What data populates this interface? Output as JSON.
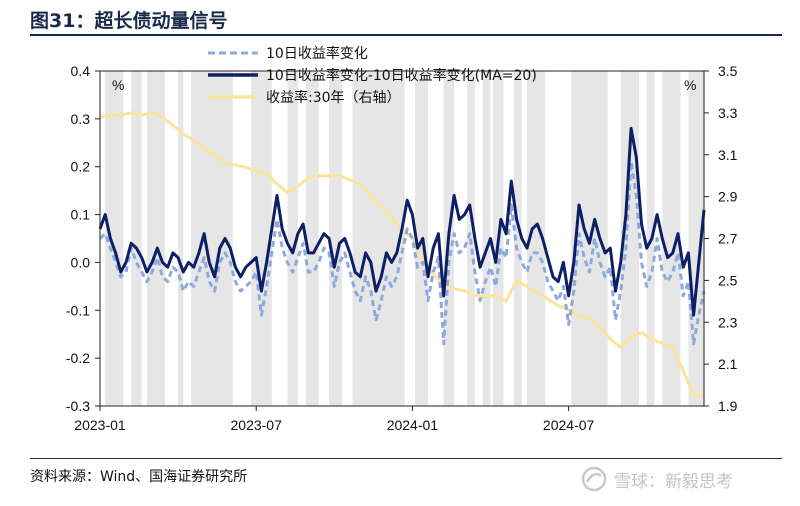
{
  "figure_title": "图31：超长债动量信号",
  "source_note": "资料来源：Wind、国海证券研究所",
  "watermark": "雪球：新毅思考",
  "colors": {
    "dash": "#8fa9dc",
    "solid": "#0d1f66",
    "yellow": "#fbe59c",
    "shade": "#e6e6e6",
    "title": "#1a2a4a"
  },
  "chart_data": {
    "type": "line",
    "title": "超长债动量信号",
    "left_axis_unit": "%",
    "right_axis_unit": "%",
    "ylim_left": [
      -0.3,
      0.4
    ],
    "ylim_right": [
      1.9,
      3.5
    ],
    "left_ticks": [
      "0.4",
      "0.3",
      "0.2",
      "0.1",
      "0.0",
      "-0.1",
      "-0.2",
      "-0.3"
    ],
    "right_ticks": [
      "3.5",
      "3.3",
      "3.1",
      "2.9",
      "2.7",
      "2.5",
      "2.3",
      "2.1",
      "1.9"
    ],
    "x_ticks": [
      "2023-01",
      "2023-07",
      "2024-01",
      "2024-07"
    ],
    "x_range_months": [
      0,
      23.2
    ],
    "x_tick_months": [
      0,
      6,
      12,
      18
    ],
    "shaded_periods_months": [
      [
        0.2,
        0.9
      ],
      [
        1.2,
        1.6
      ],
      [
        1.8,
        2.5
      ],
      [
        3.0,
        3.2
      ],
      [
        3.5,
        5.1
      ],
      [
        5.8,
        6.6
      ],
      [
        7.2,
        7.6
      ],
      [
        7.9,
        8.4
      ],
      [
        8.8,
        9.3
      ],
      [
        9.7,
        11.7
      ],
      [
        12.1,
        12.6
      ],
      [
        13.2,
        13.6
      ],
      [
        14.1,
        14.4
      ],
      [
        14.7,
        15.0
      ],
      [
        15.1,
        15.5
      ],
      [
        15.9,
        16.2
      ],
      [
        16.4,
        17.1
      ],
      [
        18.1,
        19.5
      ],
      [
        20.0,
        20.7
      ],
      [
        21.0,
        21.3
      ],
      [
        21.6,
        22.3
      ],
      [
        22.6,
        23.2
      ]
    ],
    "series": [
      {
        "name": "10日收益率变化",
        "axis": "left",
        "style": "dashed",
        "x": [
          0,
          0.2,
          0.4,
          0.6,
          0.8,
          1.0,
          1.2,
          1.4,
          1.6,
          1.8,
          2.0,
          2.2,
          2.4,
          2.6,
          2.8,
          3.0,
          3.2,
          3.4,
          3.6,
          3.8,
          4.0,
          4.2,
          4.4,
          4.6,
          4.8,
          5.0,
          5.2,
          5.4,
          5.6,
          5.8,
          6.0,
          6.2,
          6.4,
          6.6,
          6.8,
          7.0,
          7.2,
          7.4,
          7.6,
          7.8,
          8.0,
          8.2,
          8.4,
          8.6,
          8.8,
          9.0,
          9.2,
          9.4,
          9.6,
          9.8,
          10.0,
          10.2,
          10.4,
          10.6,
          10.8,
          11.0,
          11.2,
          11.4,
          11.6,
          11.8,
          12.0,
          12.2,
          12.4,
          12.6,
          12.8,
          13.0,
          13.2,
          13.4,
          13.6,
          13.8,
          14.0,
          14.2,
          14.4,
          14.6,
          14.8,
          15.0,
          15.2,
          15.4,
          15.6,
          15.8,
          16.0,
          16.2,
          16.4,
          16.6,
          16.8,
          17.0,
          17.2,
          17.4,
          17.6,
          17.8,
          18.0,
          18.2,
          18.4,
          18.6,
          18.8,
          19.0,
          19.2,
          19.4,
          19.6,
          19.8,
          20.0,
          20.2,
          20.4,
          20.6,
          20.8,
          21.0,
          21.2,
          21.4,
          21.6,
          21.8,
          22.0,
          22.2,
          22.4,
          22.6,
          22.8,
          23.0,
          23.2
        ],
        "values": [
          0.05,
          0.06,
          0.03,
          0.0,
          -0.03,
          -0.02,
          0.03,
          0.0,
          -0.02,
          -0.04,
          -0.02,
          0.01,
          -0.03,
          -0.04,
          -0.01,
          -0.02,
          -0.06,
          -0.04,
          -0.05,
          -0.02,
          0.01,
          -0.04,
          -0.06,
          0.0,
          0.02,
          0.0,
          -0.04,
          -0.06,
          -0.05,
          -0.04,
          -0.02,
          -0.11,
          -0.05,
          0.02,
          0.09,
          0.03,
          0.0,
          -0.02,
          0.01,
          0.04,
          -0.02,
          -0.02,
          0.0,
          0.03,
          0.02,
          -0.05,
          0.0,
          0.02,
          -0.02,
          -0.06,
          -0.08,
          -0.03,
          -0.06,
          -0.12,
          -0.08,
          -0.03,
          -0.05,
          -0.03,
          0.02,
          0.07,
          0.05,
          -0.01,
          0.0,
          -0.08,
          -0.02,
          0.01,
          -0.17,
          0.0,
          0.06,
          0.02,
          0.03,
          0.06,
          -0.02,
          -0.08,
          -0.04,
          -0.01,
          -0.05,
          0.03,
          0.01,
          0.12,
          0.03,
          0.0,
          -0.02,
          0.02,
          0.02,
          0.0,
          -0.04,
          -0.06,
          -0.08,
          -0.05,
          -0.13,
          -0.06,
          0.06,
          0.01,
          -0.02,
          0.05,
          0.0,
          -0.03,
          -0.01,
          -0.12,
          -0.06,
          0.03,
          0.21,
          0.14,
          0.0,
          -0.05,
          -0.02,
          0.05,
          -0.02,
          -0.04,
          -0.02,
          0.02,
          -0.07,
          -0.04,
          -0.17,
          -0.11,
          -0.06
        ]
      },
      {
        "name": "10日收益率变化-10日收益率变化(MA=20)",
        "axis": "left",
        "style": "solid",
        "x": [
          0,
          0.2,
          0.4,
          0.6,
          0.8,
          1.0,
          1.2,
          1.4,
          1.6,
          1.8,
          2.0,
          2.2,
          2.4,
          2.6,
          2.8,
          3.0,
          3.2,
          3.4,
          3.6,
          3.8,
          4.0,
          4.2,
          4.4,
          4.6,
          4.8,
          5.0,
          5.2,
          5.4,
          5.6,
          5.8,
          6.0,
          6.2,
          6.4,
          6.6,
          6.8,
          7.0,
          7.2,
          7.4,
          7.6,
          7.8,
          8.0,
          8.2,
          8.4,
          8.6,
          8.8,
          9.0,
          9.2,
          9.4,
          9.6,
          9.8,
          10.0,
          10.2,
          10.4,
          10.6,
          10.8,
          11.0,
          11.2,
          11.4,
          11.6,
          11.8,
          12.0,
          12.2,
          12.4,
          12.6,
          12.8,
          13.0,
          13.2,
          13.4,
          13.6,
          13.8,
          14.0,
          14.2,
          14.4,
          14.6,
          14.8,
          15.0,
          15.2,
          15.4,
          15.6,
          15.8,
          16.0,
          16.2,
          16.4,
          16.6,
          16.8,
          17.0,
          17.2,
          17.4,
          17.6,
          17.8,
          18.0,
          18.2,
          18.4,
          18.6,
          18.8,
          19.0,
          19.2,
          19.4,
          19.6,
          19.8,
          20.0,
          20.2,
          20.4,
          20.6,
          20.8,
          21.0,
          21.2,
          21.4,
          21.6,
          21.8,
          22.0,
          22.2,
          22.4,
          22.6,
          22.8,
          23.0,
          23.2
        ],
        "values": [
          0.07,
          0.1,
          0.05,
          0.02,
          -0.02,
          0.0,
          0.04,
          0.03,
          0.01,
          -0.02,
          0.0,
          0.03,
          0.0,
          -0.01,
          0.02,
          0.01,
          -0.02,
          0.0,
          -0.01,
          0.02,
          0.06,
          0.0,
          -0.03,
          0.03,
          0.05,
          0.03,
          -0.01,
          -0.03,
          -0.01,
          0.0,
          0.01,
          -0.06,
          0.0,
          0.07,
          0.14,
          0.07,
          0.04,
          0.02,
          0.06,
          0.08,
          0.02,
          0.02,
          0.04,
          0.06,
          0.05,
          -0.01,
          0.04,
          0.05,
          0.02,
          -0.02,
          -0.03,
          0.02,
          0.0,
          -0.06,
          -0.03,
          0.02,
          0.0,
          0.02,
          0.07,
          0.13,
          0.1,
          0.03,
          0.05,
          -0.03,
          0.03,
          0.06,
          -0.07,
          0.06,
          0.14,
          0.09,
          0.1,
          0.12,
          0.05,
          -0.01,
          0.02,
          0.05,
          0.0,
          0.09,
          0.06,
          0.17,
          0.09,
          0.05,
          0.03,
          0.07,
          0.08,
          0.05,
          0.01,
          -0.03,
          -0.04,
          0.0,
          -0.07,
          0.0,
          0.12,
          0.07,
          0.04,
          0.09,
          0.05,
          0.02,
          0.03,
          -0.06,
          0.0,
          0.1,
          0.28,
          0.22,
          0.08,
          0.03,
          0.05,
          0.1,
          0.05,
          0.01,
          0.02,
          0.06,
          -0.01,
          0.02,
          -0.11,
          0.0,
          0.11
        ]
      },
      {
        "name": "收益率:30年（右轴）",
        "axis": "right",
        "style": "solid",
        "x": [
          0,
          0.4,
          0.8,
          1.2,
          1.6,
          2.0,
          2.4,
          2.8,
          3.2,
          3.6,
          4.0,
          4.4,
          4.8,
          5.2,
          5.6,
          6.0,
          6.4,
          6.8,
          7.2,
          7.6,
          8.0,
          8.4,
          8.8,
          9.2,
          9.6,
          10.0,
          10.4,
          10.8,
          11.2,
          11.6,
          12.0,
          12.4,
          12.8,
          13.2,
          13.6,
          14.0,
          14.4,
          14.8,
          15.2,
          15.6,
          16.0,
          16.4,
          16.8,
          17.2,
          17.6,
          18.0,
          18.4,
          18.8,
          19.2,
          19.6,
          20.0,
          20.4,
          20.8,
          21.2,
          21.6,
          22.0,
          22.4,
          22.8,
          23.2
        ],
        "values": [
          3.28,
          3.29,
          3.29,
          3.3,
          3.29,
          3.3,
          3.28,
          3.24,
          3.2,
          3.17,
          3.13,
          3.1,
          3.06,
          3.05,
          3.04,
          3.02,
          3.01,
          2.96,
          2.92,
          2.95,
          2.99,
          3.0,
          3.0,
          3.0,
          2.98,
          2.96,
          2.9,
          2.85,
          2.8,
          2.74,
          2.7,
          2.6,
          2.53,
          2.48,
          2.46,
          2.45,
          2.43,
          2.42,
          2.43,
          2.4,
          2.5,
          2.47,
          2.44,
          2.41,
          2.38,
          2.36,
          2.33,
          2.32,
          2.28,
          2.22,
          2.18,
          2.23,
          2.25,
          2.22,
          2.2,
          2.18,
          2.07,
          1.95,
          1.95
        ]
      }
    ]
  }
}
